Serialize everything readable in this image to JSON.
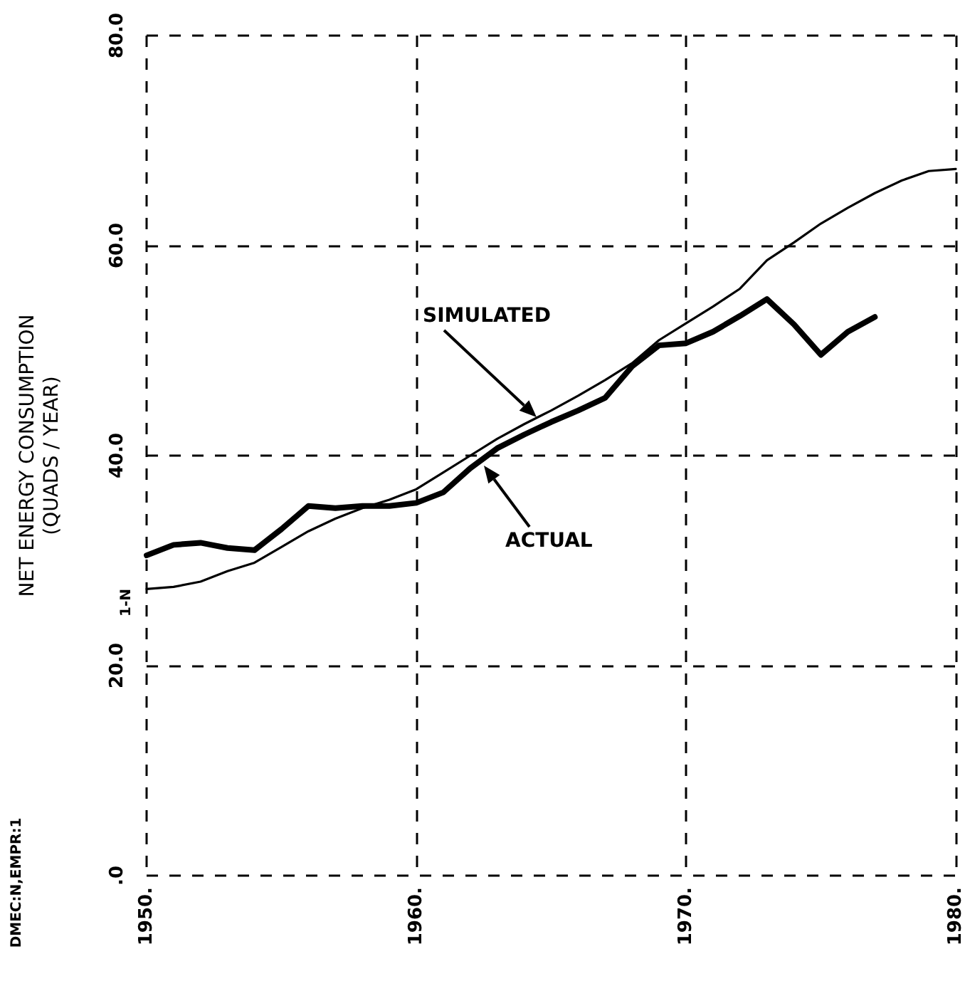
{
  "chart_data": {
    "type": "line",
    "ylabel": "NET ENERGY CONSUMPTION\n(QUADS / YEAR)",
    "x": [
      1950,
      1951,
      1952,
      1953,
      1954,
      1955,
      1956,
      1957,
      1958,
      1959,
      1960,
      1961,
      1962,
      1963,
      1964,
      1965,
      1966,
      1967,
      1968,
      1969,
      1970,
      1971,
      1972,
      1973,
      1974,
      1975,
      1976,
      1977,
      1978,
      1979,
      1980
    ],
    "series": [
      {
        "color": "#000000",
        "values": [
          30.5,
          31.5,
          31.7,
          31.2,
          31.0,
          33.0,
          35.2,
          35.0,
          35.2,
          35.2,
          35.5,
          36.5,
          38.8,
          40.7,
          42.0,
          43.2,
          44.3,
          45.5,
          48.5,
          50.5,
          50.7,
          51.8,
          53.3,
          54.9,
          52.5,
          49.6,
          51.8,
          53.2,
          null,
          null,
          null
        ]
      },
      {
        "color": "#000000",
        "values": [
          27.3,
          27.5,
          28.0,
          29.0,
          29.8,
          31.3,
          32.8,
          34.0,
          35.0,
          35.8,
          36.8,
          38.4,
          40.0,
          41.6,
          43.0,
          44.3,
          45.7,
          47.2,
          48.8,
          51.0,
          52.6,
          54.2,
          55.9,
          58.6,
          60.3,
          62.1,
          63.6,
          65.0,
          66.2,
          67.1,
          67.3
        ]
      }
    ],
    "xlim": [
      1950,
      1980
    ],
    "xticks": [
      {
        "value": 1950,
        "label": "1950."
      },
      {
        "value": 1960,
        "label": "1960."
      },
      {
        "value": 1970,
        "label": "1970."
      },
      {
        "value": 1980,
        "label": "1980."
      }
    ],
    "ylim": [
      0,
      80
    ],
    "yticks": [
      {
        "value": 0,
        "label": ".0"
      },
      {
        "value": 20,
        "label": "20.0"
      },
      {
        "value": 40,
        "label": "40.0"
      },
      {
        "value": 60,
        "label": "60.0"
      },
      {
        "value": 80,
        "label": "80.0"
      }
    ],
    "annotations": [
      "SIMULATED",
      "ACTUAL",
      "1-N",
      "DMEC:N,EMPR:1"
    ],
    "grid": true,
    "marker": "none",
    "line_style": "solid"
  }
}
